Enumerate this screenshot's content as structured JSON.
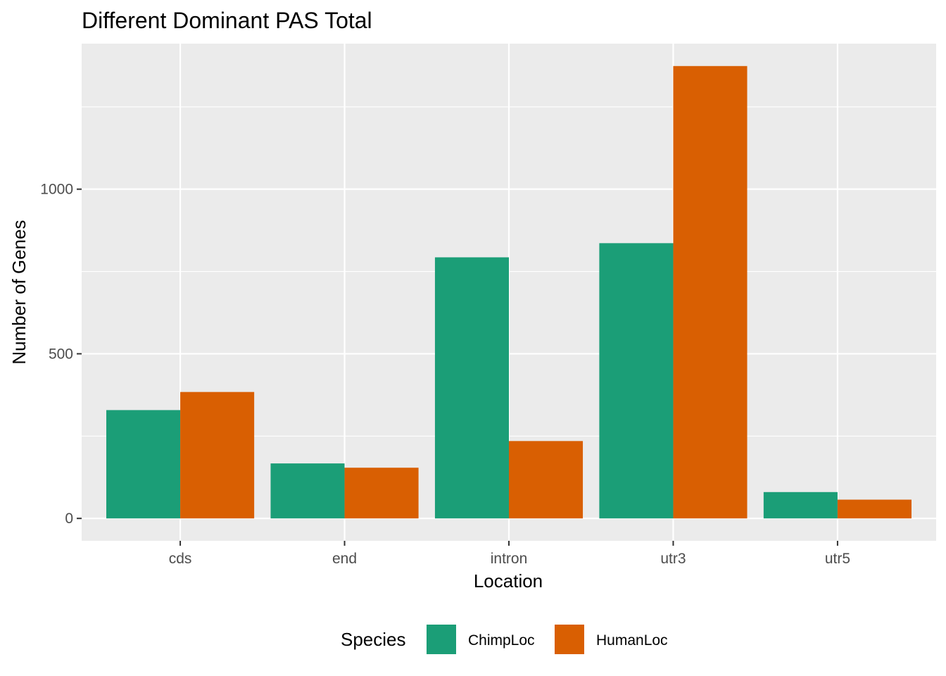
{
  "chart_data": {
    "type": "bar",
    "title": "Different Dominant PAS Total",
    "xlabel": "Location",
    "ylabel": "Number of Genes",
    "categories": [
      "cds",
      "end",
      "intron",
      "utr3",
      "utr5"
    ],
    "series": [
      {
        "name": "ChimpLoc",
        "color": "#1b9e77",
        "values": [
          329,
          167,
          793,
          836,
          80
        ]
      },
      {
        "name": "HumanLoc",
        "color": "#d95f02",
        "values": [
          384,
          154,
          235,
          1374,
          57
        ]
      }
    ],
    "ylim": [
      -68,
      1442
    ],
    "yticks": [
      0,
      500,
      1000
    ],
    "y_minor_ticks": [
      250,
      750,
      1250
    ],
    "grid": true,
    "legend": {
      "title": "Species",
      "position": "bottom"
    },
    "panel_background": "#ebebeb",
    "grid_color": "#ffffff"
  }
}
